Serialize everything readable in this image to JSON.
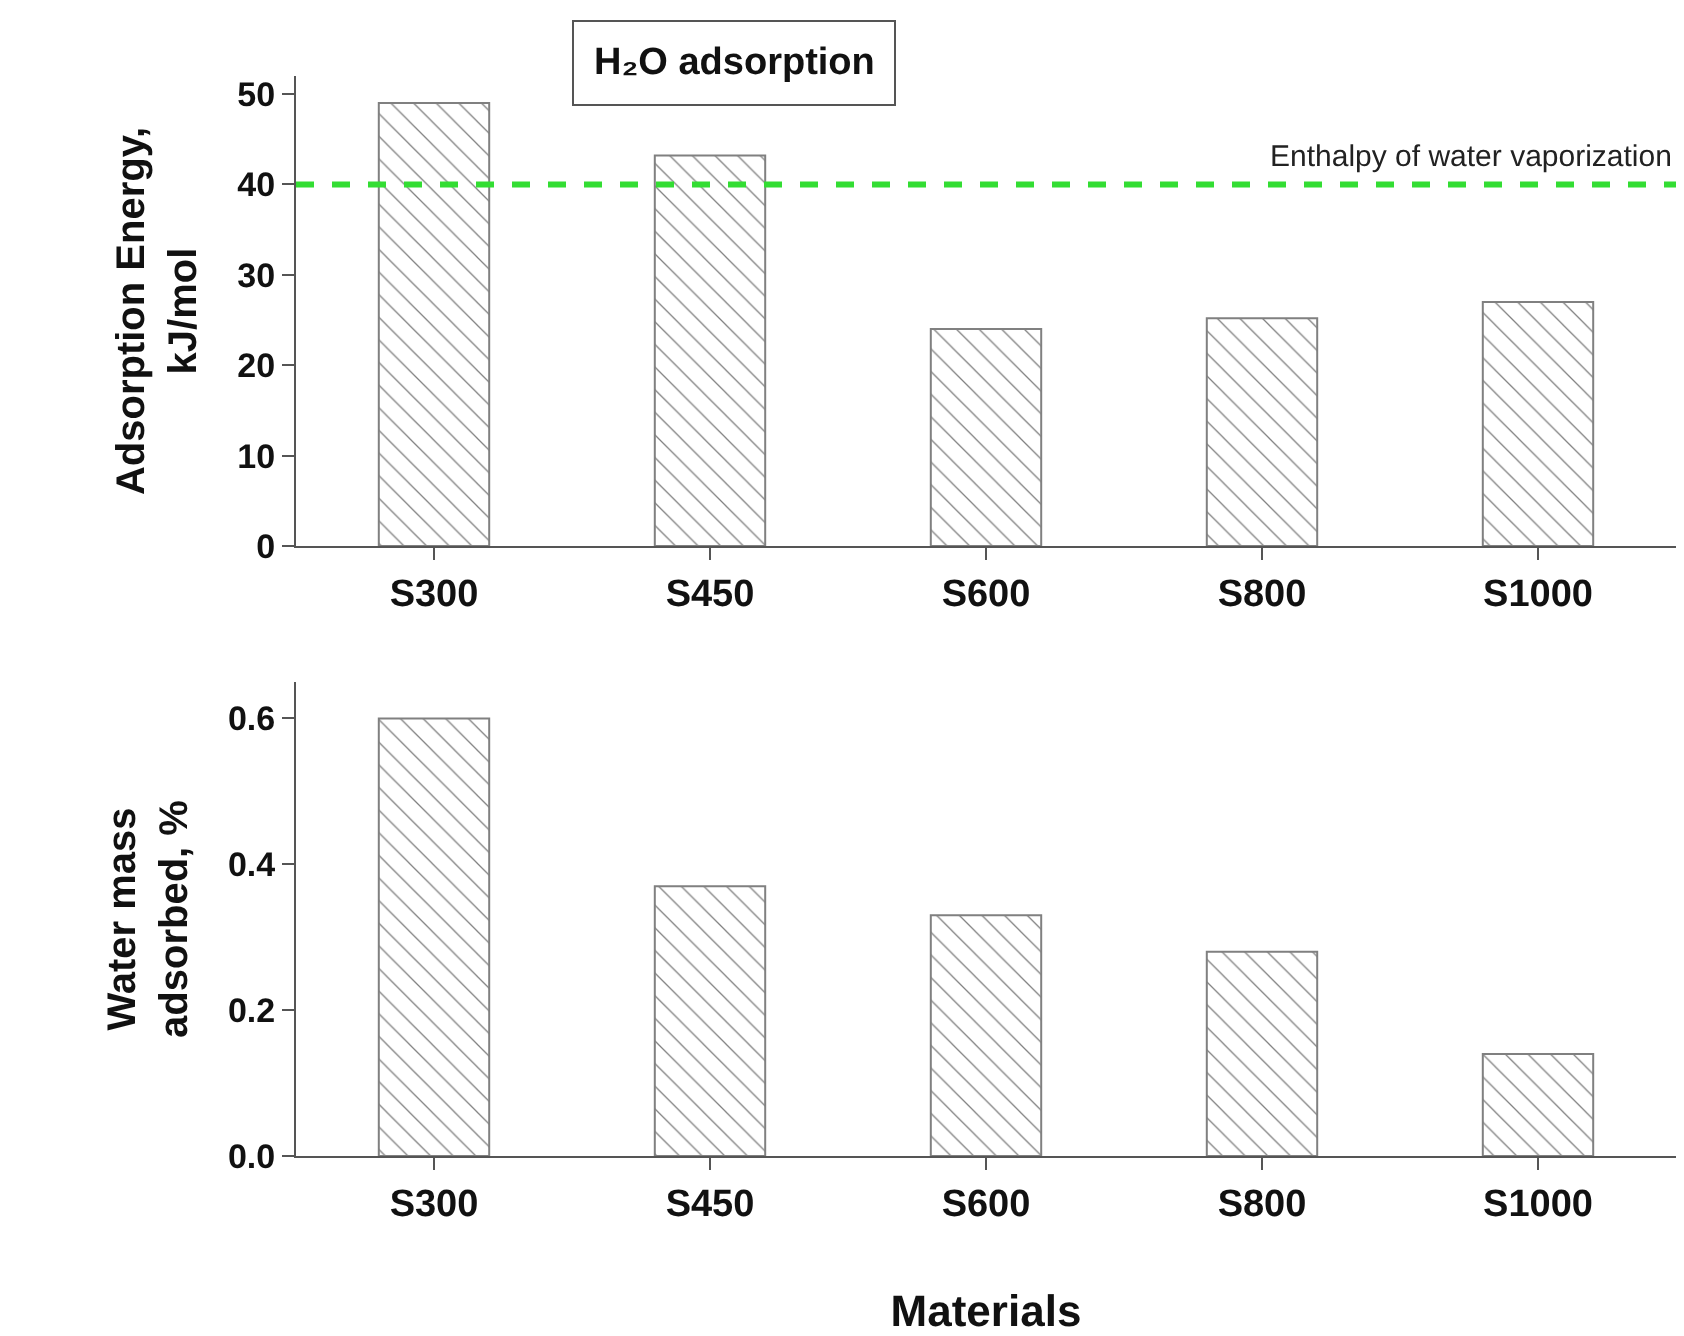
{
  "chart_data": [
    {
      "type": "bar",
      "title": "H₂O adsorption",
      "ylabel": "Adsorption Energy,\nkJ/mol",
      "categories": [
        "S300",
        "S450",
        "S600",
        "S800",
        "S1000"
      ],
      "values": [
        49,
        43.2,
        24,
        25.2,
        27
      ],
      "color": "#808080",
      "ylim": [
        0,
        52
      ],
      "yticks": [
        0,
        10,
        20,
        30,
        40,
        50
      ],
      "grid": false,
      "legend": false,
      "ref_lines": [
        {
          "axis": "y",
          "value": 40,
          "label": "Enthalpy of water vaporization",
          "color": "#33dd33",
          "line_style": "dashed"
        }
      ]
    },
    {
      "type": "bar",
      "xlabel": "Materials",
      "ylabel": "Water mass\nadsorbed, %",
      "categories": [
        "S300",
        "S450",
        "S600",
        "S800",
        "S1000"
      ],
      "values": [
        0.6,
        0.37,
        0.33,
        0.28,
        0.14
      ],
      "color": "#808080",
      "ylim": [
        0,
        0.65
      ],
      "yticks": [
        {
          "value": 0,
          "label": "0.0"
        },
        {
          "value": 0.2,
          "label": "0.2"
        },
        {
          "value": 0.4,
          "label": "0.4"
        },
        {
          "value": 0.6,
          "label": "0.6"
        }
      ],
      "grid": false,
      "legend": false
    }
  ]
}
